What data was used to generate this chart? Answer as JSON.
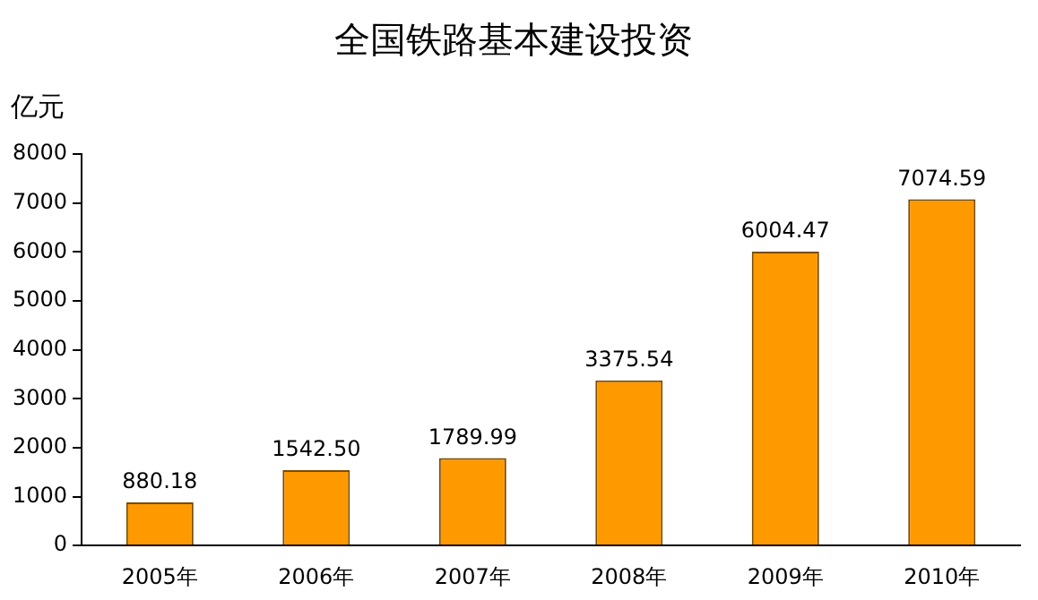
{
  "chart_data": {
    "type": "bar",
    "title": "全国铁路基本建设投资",
    "ylabel": "亿元",
    "categories": [
      "2005年",
      "2006年",
      "2007年",
      "2008年",
      "2009年",
      "2010年"
    ],
    "values": [
      880.18,
      1542.5,
      1789.99,
      3375.54,
      6004.47,
      7074.59
    ],
    "value_labels": [
      "880.18",
      "1542.50",
      "1789.99",
      "3375.54",
      "6004.47",
      "7074.59"
    ],
    "color": "#ff9900",
    "ylim": [
      0,
      8000
    ],
    "yticks": [
      0,
      1000,
      2000,
      3000,
      4000,
      5000,
      6000,
      7000,
      8000
    ],
    "grid": false,
    "legend": false
  }
}
